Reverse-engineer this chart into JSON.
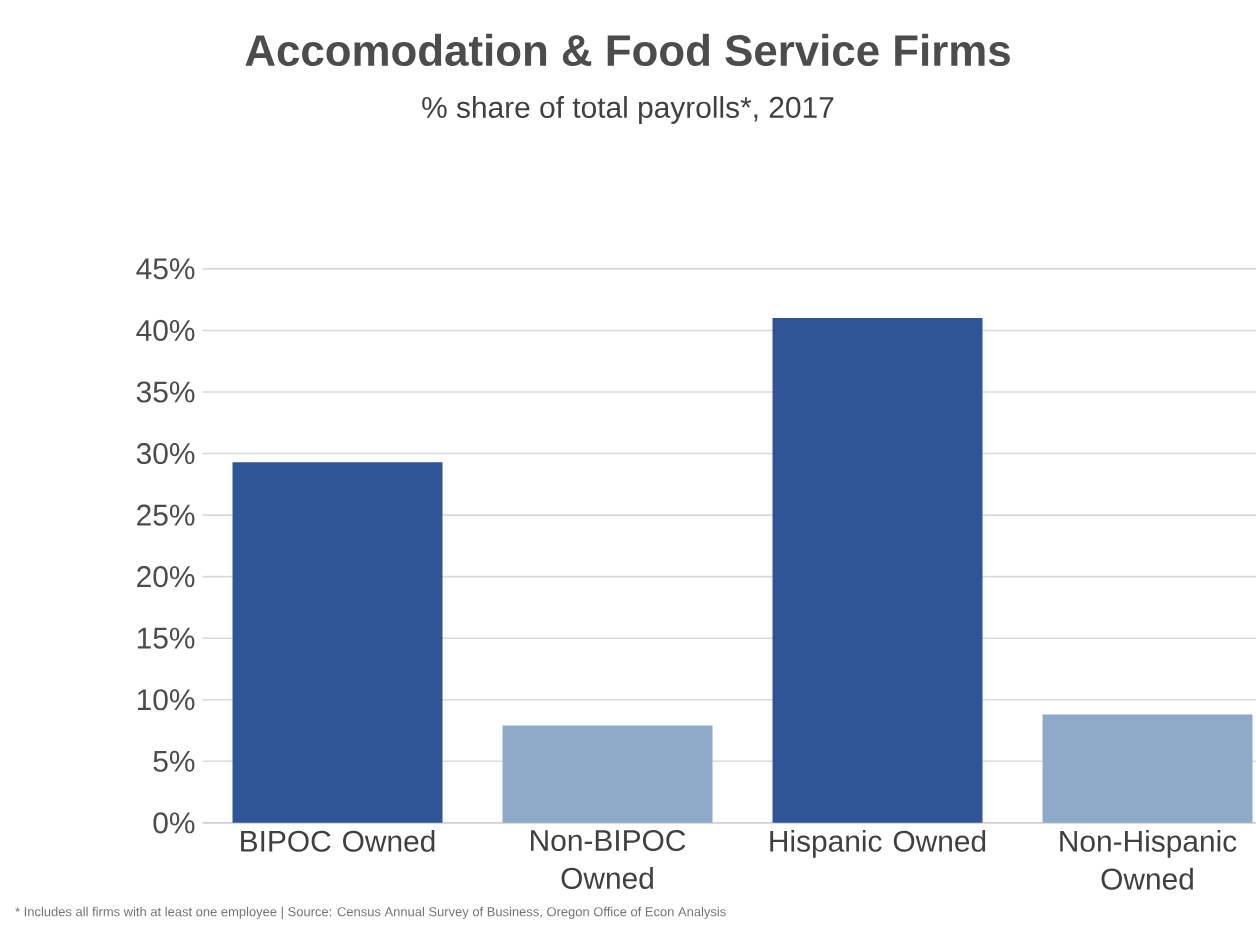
{
  "chart_data": {
    "type": "bar",
    "title": "Accomodation & Food Service Firms",
    "subtitle": "% share of total payrolls*, 2017",
    "categories": [
      "BIPOC Owned",
      "Non-BIPOC Owned",
      "Hispanic Owned",
      "Non-Hispanic Owned"
    ],
    "values": [
      29.3,
      7.9,
      41.0,
      8.8
    ],
    "colors": [
      "#2f5597",
      "#8faac8",
      "#2f5597",
      "#8faac8"
    ],
    "ylim": [
      0,
      45
    ],
    "yticks": [
      {
        "value": 0,
        "label": "0%"
      },
      {
        "value": 5,
        "label": "5%"
      },
      {
        "value": 10,
        "label": "10%"
      },
      {
        "value": 15,
        "label": "15%"
      },
      {
        "value": 20,
        "label": "20%"
      },
      {
        "value": 25,
        "label": "25%"
      },
      {
        "value": 30,
        "label": "30%"
      },
      {
        "value": 35,
        "label": "35%"
      },
      {
        "value": 40,
        "label": "40%"
      },
      {
        "value": 45,
        "label": "45%"
      }
    ],
    "grid": "y",
    "annotations": [
      "* Includes all firms with at least one employee  |  Source: Census Annual Survey of Business, Oregon Office of Econ Analysis"
    ]
  }
}
